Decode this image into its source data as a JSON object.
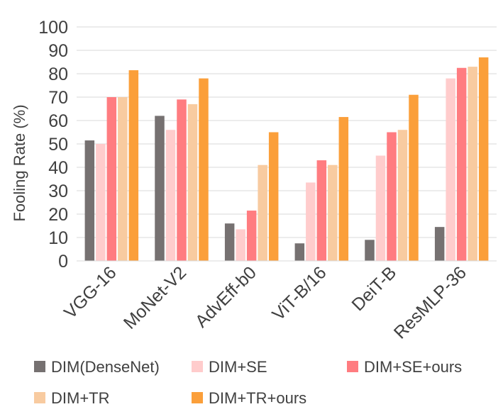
{
  "chart_data": {
    "type": "bar",
    "title": "",
    "xlabel": "",
    "ylabel": "Fooling Rate (%)",
    "ylim": [
      0,
      100
    ],
    "yticks": [
      0,
      10,
      20,
      30,
      40,
      50,
      60,
      70,
      80,
      90,
      100
    ],
    "grid": true,
    "legend_position": "bottom",
    "categories": [
      "VGG-16",
      "MoNet-V2",
      "AdvEff-b0",
      "ViT-B/16",
      "DeiT-B",
      "ResMLP-36"
    ],
    "series": [
      {
        "name": "DIM(DenseNet)",
        "color": "#767171",
        "values": [
          51.5,
          62,
          16,
          7.5,
          9,
          14.5
        ]
      },
      {
        "name": "DIM+SE",
        "color": "#ffcccc",
        "values": [
          50,
          56,
          13.5,
          33.5,
          45,
          78
        ]
      },
      {
        "name": "DIM+SE+ours",
        "color": "#ff7c80",
        "values": [
          70,
          69,
          21.5,
          43,
          55,
          82.5
        ]
      },
      {
        "name": "DIM+TR",
        "color": "#f8cba0",
        "values": [
          70,
          67,
          41,
          41,
          56,
          83
        ]
      },
      {
        "name": "DIM+TR+ours",
        "color": "#fb9f3a",
        "values": [
          81.5,
          78,
          55,
          61.5,
          71,
          87
        ]
      }
    ]
  }
}
